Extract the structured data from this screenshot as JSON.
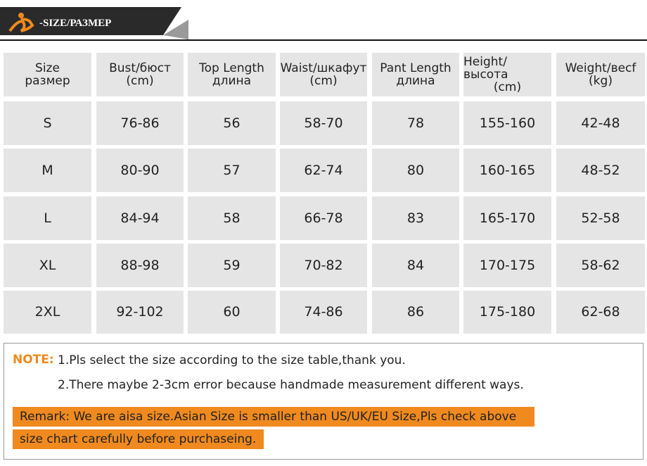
{
  "header": {
    "title": "-SIZE/РАЗМЕР"
  },
  "table": {
    "header": [
      [
        "Size",
        "размер"
      ],
      [
        "Bust/бюст",
        "(cm)"
      ],
      [
        "Top Length",
        "длина"
      ],
      [
        "Waist/шкафут",
        "(cm)"
      ],
      [
        "Pant Length",
        "длина"
      ],
      [
        "Height/высота",
        "(cm)"
      ],
      [
        "Weight/весf",
        "(kg)"
      ]
    ],
    "rows": [
      [
        "S",
        "76-86",
        "56",
        "58-70",
        "78",
        "155-160",
        "42-48"
      ],
      [
        "M",
        "80-90",
        "57",
        "62-74",
        "80",
        "160-165",
        "48-52"
      ],
      [
        "L",
        "84-94",
        "58",
        "66-78",
        "83",
        "165-170",
        "52-58"
      ],
      [
        "XL",
        "88-98",
        "59",
        "70-82",
        "84",
        "170-175",
        "58-62"
      ],
      [
        "2XL",
        "92-102",
        "60",
        "74-86",
        "86",
        "175-180",
        "62-68"
      ]
    ]
  },
  "note": {
    "label": "NOTE:",
    "lines": [
      "1.Pls select the size according to the size table,thank you.",
      "2.There maybe 2-3cm error because handmade measurement different ways."
    ]
  },
  "remark": {
    "lines": [
      "Remark: We are aisa size.Asian Size is smaller than US/UK/EU Size,Pls check above",
      "size chart carefully before purchaseing."
    ]
  }
}
